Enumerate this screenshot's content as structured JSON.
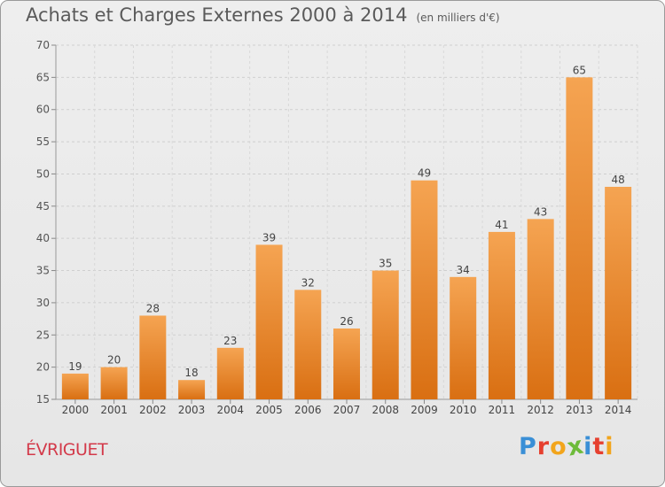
{
  "header": {
    "title": "Achats et Charges Externes 2000 à 2014",
    "subtitle": "(en milliers d'€)"
  },
  "footer": {
    "commune": "ÉVRIGUET",
    "brand": "Proxiti",
    "brand_letters": [
      {
        "ch": "P",
        "color": "#3a8fd6"
      },
      {
        "ch": "r",
        "color": "#e6402f"
      },
      {
        "ch": "o",
        "color": "#f2a51c"
      },
      {
        "ch": "x",
        "color": "#6dbb3a"
      },
      {
        "ch": "i",
        "color": "#3a8fd6"
      },
      {
        "ch": "t",
        "color": "#e6402f"
      },
      {
        "ch": "i",
        "color": "#f2a51c"
      }
    ]
  },
  "chart_data": {
    "type": "bar",
    "categories": [
      "2000",
      "2001",
      "2002",
      "2003",
      "2004",
      "2005",
      "2006",
      "2007",
      "2008",
      "2009",
      "2010",
      "2011",
      "2012",
      "2013",
      "2014"
    ],
    "values": [
      19,
      20,
      28,
      18,
      23,
      39,
      32,
      26,
      35,
      49,
      34,
      41,
      43,
      65,
      48
    ],
    "ylim": [
      15,
      70
    ],
    "yticks": [
      15,
      20,
      25,
      30,
      35,
      40,
      45,
      50,
      55,
      60,
      65,
      70
    ],
    "grid": true,
    "bar_color_top": "#f5a452",
    "bar_color_bottom": "#d96f12"
  }
}
